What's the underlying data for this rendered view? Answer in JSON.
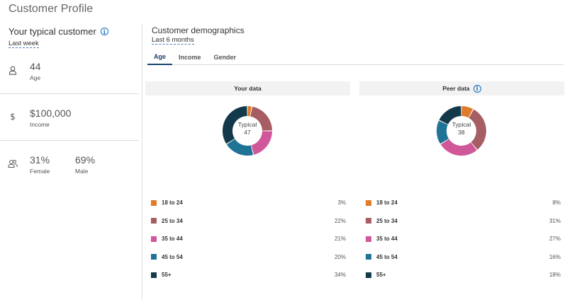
{
  "page": {
    "title": "Customer Profile"
  },
  "typical": {
    "heading": "Your typical customer",
    "period": "Last week",
    "age": {
      "value": "44",
      "label": "Age"
    },
    "income": {
      "value": "$100,000",
      "label": "Income"
    },
    "gender": {
      "female_pct": "31%",
      "female_label": "Female",
      "male_pct": "69%",
      "male_label": "Male"
    }
  },
  "demographics": {
    "title": "Customer demographics",
    "period": "Last 6 months",
    "tabs": [
      "Age",
      "Income",
      "Gender"
    ],
    "active_tab": "Age",
    "your_data": {
      "heading": "Your data",
      "center_label": "Typical",
      "center_value": "47",
      "legend": [
        {
          "label": "18 to 24",
          "pct": "3%"
        },
        {
          "label": "25 to 34",
          "pct": "22%"
        },
        {
          "label": "35 to 44",
          "pct": "21%"
        },
        {
          "label": "45 to 54",
          "pct": "20%"
        },
        {
          "label": "55+",
          "pct": "34%"
        }
      ]
    },
    "peer_data": {
      "heading": "Peer data",
      "center_label": "Typical",
      "center_value": "38",
      "legend": [
        {
          "label": "18 to 24",
          "pct": "8%"
        },
        {
          "label": "25 to 34",
          "pct": "31%"
        },
        {
          "label": "35 to 44",
          "pct": "27%"
        },
        {
          "label": "45 to 54",
          "pct": "16%"
        },
        {
          "label": "55+",
          "pct": "18%"
        }
      ]
    }
  },
  "chart_data": [
    {
      "type": "pie",
      "title": "Your data",
      "categories": [
        "18 to 24",
        "25 to 34",
        "35 to 44",
        "45 to 54",
        "55+"
      ],
      "values": [
        3,
        22,
        21,
        20,
        34
      ],
      "colors": [
        "#e07b2a",
        "#a65e63",
        "#d0579a",
        "#1f7394",
        "#13394a"
      ]
    },
    {
      "type": "pie",
      "title": "Peer data",
      "categories": [
        "18 to 24",
        "25 to 34",
        "35 to 44",
        "45 to 54",
        "55+"
      ],
      "values": [
        8,
        31,
        27,
        16,
        18
      ],
      "colors": [
        "#e07b2a",
        "#a65e63",
        "#d0579a",
        "#1f7394",
        "#13394a"
      ]
    }
  ],
  "icons": {
    "age": "person-icon",
    "income": "dollar-icon",
    "gender": "people-icon",
    "info": "info-icon"
  }
}
